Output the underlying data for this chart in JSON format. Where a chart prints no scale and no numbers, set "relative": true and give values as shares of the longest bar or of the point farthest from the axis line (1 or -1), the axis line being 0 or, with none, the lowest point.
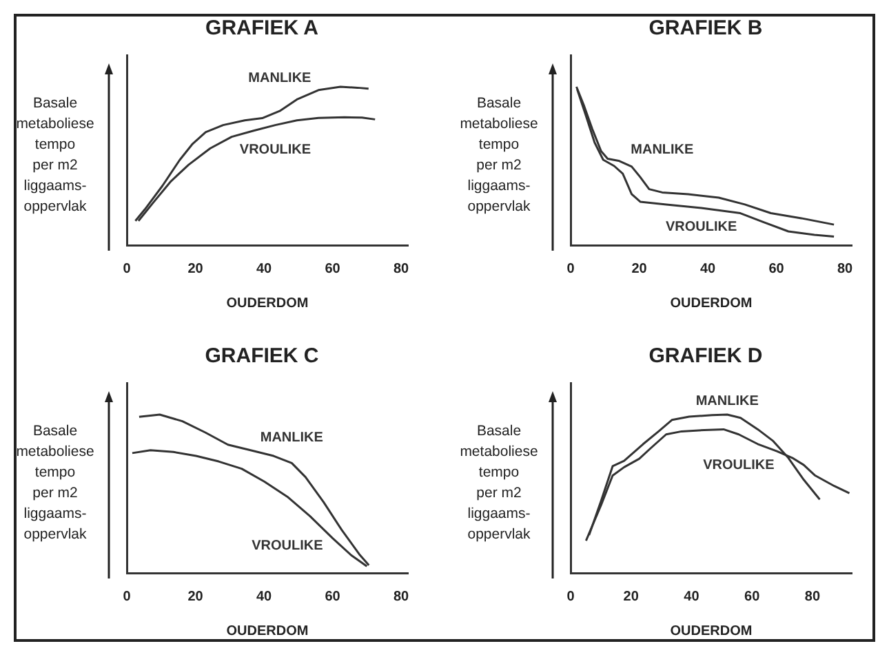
{
  "chart_data": [
    {
      "type": "line",
      "title": "GRAFIEK A",
      "xlabel": "OUDERDOM",
      "ylabel": "Basale\nmetaboliese\ntempo\nper m2\nliggaams-\noppervlak",
      "relative": true,
      "tick_labels": "x",
      "xlim": [
        0,
        82
      ],
      "xticks": [
        0,
        20,
        40,
        60,
        80
      ],
      "series": [
        {
          "name": "MANLIKE",
          "color": "#333333",
          "x": [
            2.5,
            5.3,
            10.4,
            15.4,
            19.2,
            23.0,
            28.1,
            34.4,
            39.5,
            44.6,
            49.6,
            55.9,
            62.3,
            67.3,
            70.5
          ],
          "values": [
            0.153,
            0.227,
            0.375,
            0.537,
            0.64,
            0.714,
            0.758,
            0.788,
            0.802,
            0.847,
            0.92,
            0.979,
            1.0,
            0.994,
            0.988
          ]
        },
        {
          "name": "VROULIKE",
          "color": "#333333",
          "x": [
            3.4,
            7.8,
            12.9,
            18.0,
            24.3,
            30.6,
            37.0,
            43.3,
            49.6,
            55.9,
            63.5,
            68.6,
            72.4
          ],
          "values": [
            0.153,
            0.271,
            0.404,
            0.507,
            0.611,
            0.684,
            0.723,
            0.758,
            0.788,
            0.803,
            0.808,
            0.805,
            0.794
          ]
        }
      ]
    },
    {
      "type": "line",
      "title": "GRAFIEK B",
      "xlabel": "OUDERDOM",
      "ylabel": "Basale\nmetaboliese\ntempo\nper m2\nliggaams-\noppervlak",
      "relative": true,
      "tick_labels": "x",
      "xlim": [
        0,
        82
      ],
      "xticks": [
        0,
        20,
        40,
        60,
        80
      ],
      "series": [
        {
          "name": "MANLIKE",
          "color": "#333333",
          "x": [
            1.7,
            3.8,
            6.3,
            8.9,
            10.8,
            14.0,
            17.8,
            20.3,
            22.9,
            26.7,
            34.3,
            43.2,
            50.8,
            58.4,
            67.3,
            76.8
          ],
          "values": [
            1.0,
            0.887,
            0.735,
            0.593,
            0.546,
            0.533,
            0.496,
            0.43,
            0.354,
            0.333,
            0.322,
            0.3,
            0.257,
            0.202,
            0.17,
            0.13
          ]
        },
        {
          "name": "VROULIKE",
          "color": "#333333",
          "x": [
            1.9,
            4.4,
            7.0,
            9.5,
            12.7,
            15.2,
            17.8,
            20.3,
            27.9,
            38.1,
            49.5,
            55.9,
            63.5,
            71.1,
            76.8
          ],
          "values": [
            0.985,
            0.822,
            0.648,
            0.539,
            0.5,
            0.452,
            0.322,
            0.274,
            0.257,
            0.235,
            0.202,
            0.148,
            0.087,
            0.065,
            0.054
          ]
        }
      ]
    },
    {
      "type": "line",
      "title": "GRAFIEK C",
      "xlabel": "OUDERDOM",
      "ylabel": "Basale\nmetaboliese\ntempo\nper m2\nliggaams-\noppervlak",
      "relative": true,
      "tick_labels": "x",
      "xlim": [
        0,
        82
      ],
      "xticks": [
        0,
        20,
        40,
        60,
        80
      ],
      "series": [
        {
          "name": "MANLIKE",
          "color": "#333333",
          "x": [
            3.6,
            9.6,
            16.2,
            22.9,
            29.5,
            36.1,
            42.8,
            48.1,
            52.1,
            57.4,
            62.7,
            68.0,
            70.6
          ],
          "values": [
            0.986,
            1.0,
            0.958,
            0.887,
            0.81,
            0.775,
            0.739,
            0.694,
            0.606,
            0.447,
            0.271,
            0.113,
            0.049
          ]
        },
        {
          "name": "VROULIKE",
          "color": "#333333",
          "x": [
            1.6,
            6.9,
            13.6,
            20.2,
            26.8,
            33.5,
            40.1,
            46.8,
            53.4,
            60.1,
            65.4,
            70.0
          ],
          "values": [
            0.757,
            0.775,
            0.764,
            0.739,
            0.704,
            0.658,
            0.577,
            0.482,
            0.359,
            0.218,
            0.113,
            0.042
          ]
        }
      ]
    },
    {
      "type": "line",
      "title": "GRAFIEK D",
      "xlabel": "OUDERDOM",
      "ylabel": "Basale\nmetaboliese\ntempo\nper m2\nliggaams-\noppervlak",
      "relative": true,
      "tick_labels": "x",
      "xlim": [
        0,
        93
      ],
      "xticks": [
        0,
        20,
        40,
        60,
        80
      ],
      "series": [
        {
          "name": "MANLIKE",
          "color": "#333333",
          "x": [
            6.1,
            10.1,
            13.9,
            17.7,
            24.0,
            29.1,
            33.5,
            39.2,
            46.8,
            51.8,
            56.2,
            61.9,
            67.0,
            72.0,
            77.1,
            82.4
          ],
          "values": [
            0.239,
            0.456,
            0.674,
            0.708,
            0.814,
            0.894,
            0.966,
            0.987,
            0.997,
            1.0,
            0.979,
            0.907,
            0.833,
            0.727,
            0.589,
            0.464
          ]
        },
        {
          "name": "VROULIKE",
          "color": "#333333",
          "x": [
            5.1,
            10.1,
            13.9,
            17.7,
            22.7,
            26.5,
            31.6,
            36.7,
            44.2,
            50.6,
            55.6,
            61.9,
            68.2,
            73.3,
            77.1,
            80.9,
            87.2,
            92.2
          ],
          "values": [
            0.204,
            0.43,
            0.615,
            0.668,
            0.721,
            0.788,
            0.875,
            0.894,
            0.902,
            0.907,
            0.875,
            0.814,
            0.769,
            0.727,
            0.682,
            0.615,
            0.549,
            0.504
          ]
        }
      ]
    }
  ]
}
